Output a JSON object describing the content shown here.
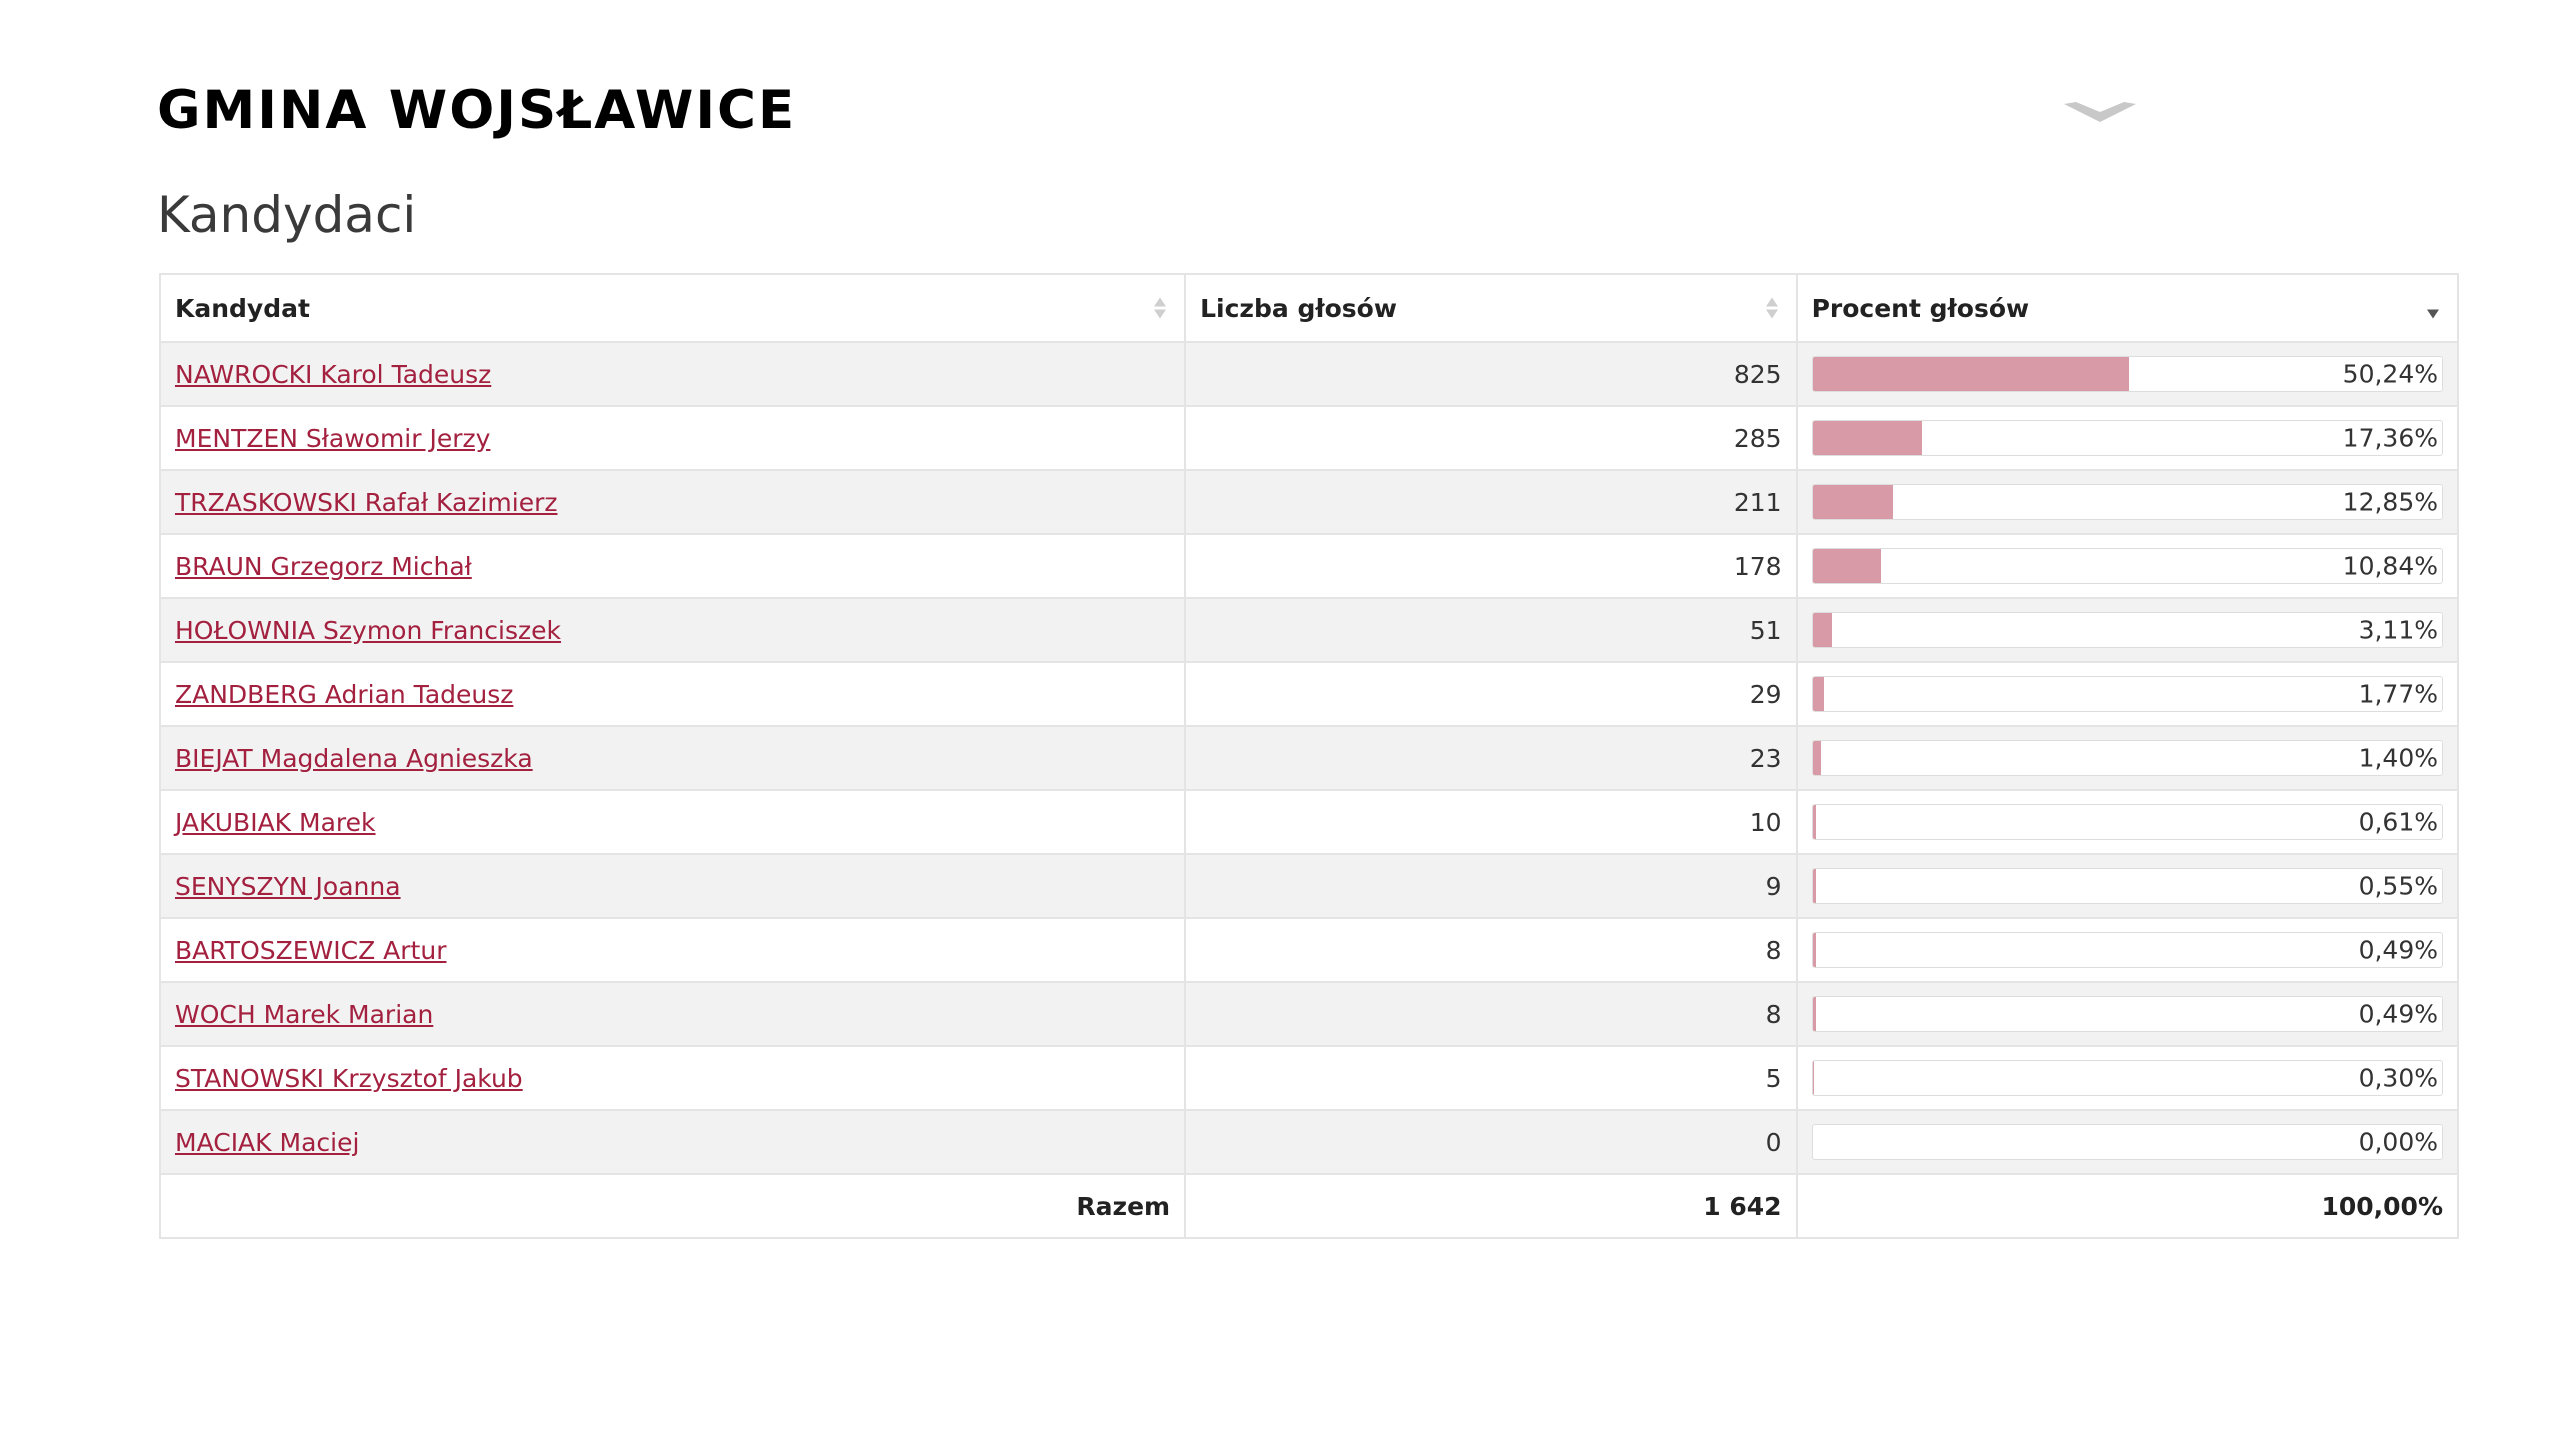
{
  "page": {
    "title": "GMINA WOJSŁAWICE",
    "section_title": "Kandydaci"
  },
  "table": {
    "headers": {
      "candidate": "Kandydat",
      "votes": "Liczba głosów",
      "percent": "Procent głosów"
    },
    "sort": {
      "column": "percent",
      "direction": "desc"
    },
    "rows": [
      {
        "name": "NAWROCKI Karol Tadeusz",
        "votes": "825",
        "percent": "50,24%",
        "share": 50.24
      },
      {
        "name": "MENTZEN Sławomir Jerzy",
        "votes": "285",
        "percent": "17,36%",
        "share": 17.36
      },
      {
        "name": "TRZASKOWSKI Rafał Kazimierz",
        "votes": "211",
        "percent": "12,85%",
        "share": 12.85
      },
      {
        "name": "BRAUN Grzegorz Michał",
        "votes": "178",
        "percent": "10,84%",
        "share": 10.84
      },
      {
        "name": "HOŁOWNIA Szymon Franciszek",
        "votes": "51",
        "percent": "3,11%",
        "share": 3.11
      },
      {
        "name": "ZANDBERG Adrian Tadeusz",
        "votes": "29",
        "percent": "1,77%",
        "share": 1.77
      },
      {
        "name": "BIEJAT Magdalena Agnieszka",
        "votes": "23",
        "percent": "1,40%",
        "share": 1.4
      },
      {
        "name": "JAKUBIAK Marek",
        "votes": "10",
        "percent": "0,61%",
        "share": 0.61
      },
      {
        "name": "SENYSZYN Joanna",
        "votes": "9",
        "percent": "0,55%",
        "share": 0.55
      },
      {
        "name": "BARTOSZEWICZ Artur",
        "votes": "8",
        "percent": "0,49%",
        "share": 0.49
      },
      {
        "name": "WOCH Marek Marian",
        "votes": "8",
        "percent": "0,49%",
        "share": 0.49
      },
      {
        "name": "STANOWSKI Krzysztof Jakub",
        "votes": "5",
        "percent": "0,30%",
        "share": 0.3
      },
      {
        "name": "MACIAK Maciej",
        "votes": "0",
        "percent": "0,00%",
        "share": 0.0
      }
    ],
    "footer": {
      "label": "Razem",
      "votes": "1 642",
      "percent": "100,00%"
    }
  },
  "colors": {
    "link": "#a3203f",
    "bar_fill": "#d99aa7",
    "row_stripe": "#f2f2f2"
  },
  "icons": {
    "collapse": "chevron-down-icon",
    "sort": "sort-arrows-icon"
  }
}
